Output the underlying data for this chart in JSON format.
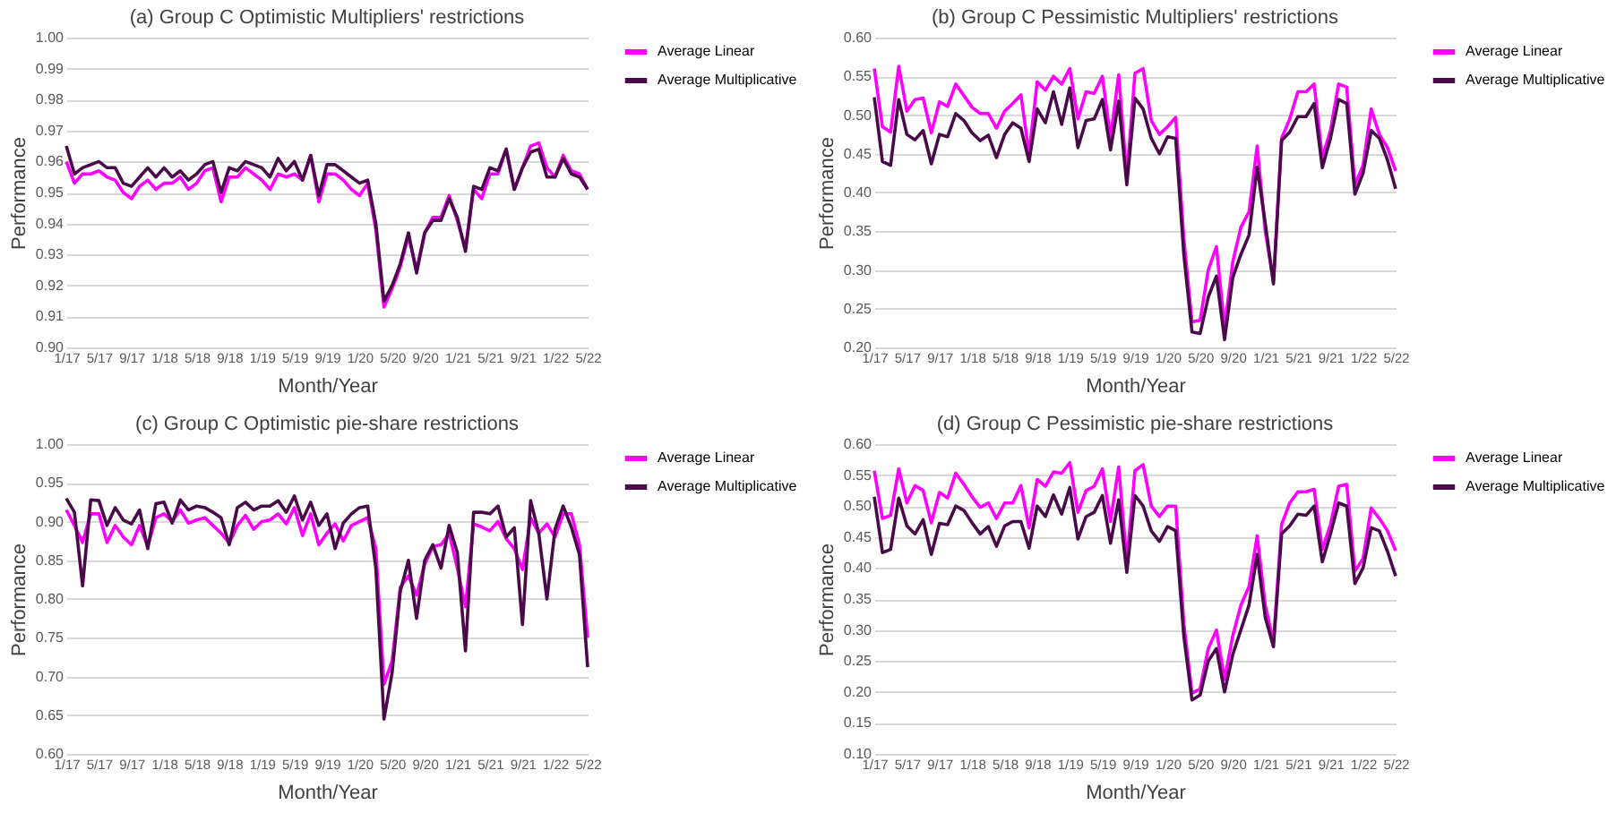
{
  "chart_data": [
    {
      "type": "line",
      "title": "(a) Group C Optimistic Multipliers' restrictions",
      "xlabel": "Month/Year",
      "ylabel": "Performance",
      "categories": [
        "1/17",
        null,
        null,
        null,
        "5/17",
        null,
        null,
        null,
        "9/17",
        null,
        null,
        null,
        "1/18",
        null,
        null,
        null,
        "5/18",
        null,
        null,
        null,
        "9/18",
        null,
        null,
        null,
        "1/19",
        null,
        null,
        null,
        "5/19",
        null,
        null,
        null,
        "9/19",
        null,
        null,
        null,
        "1/20",
        null,
        null,
        null,
        "5/20",
        null,
        null,
        null,
        "9/20",
        null,
        null,
        null,
        "1/21",
        null,
        null,
        null,
        "5/21",
        null,
        null,
        null,
        "9/21",
        null,
        null,
        null,
        "1/22",
        null,
        null,
        null,
        "5/22"
      ],
      "series": [
        {
          "name": "Average Linear",
          "color": "#ff00ff",
          "values": [
            0.96,
            0.953,
            0.956,
            0.956,
            0.957,
            0.955,
            0.954,
            0.95,
            0.948,
            0.952,
            0.954,
            0.951,
            0.953,
            0.953,
            0.955,
            0.951,
            0.953,
            0.957,
            0.958,
            0.947,
            0.955,
            0.955,
            0.958,
            0.956,
            0.954,
            0.951,
            0.956,
            0.955,
            0.956,
            0.954,
            0.962,
            0.947,
            0.956,
            0.956,
            0.954,
            0.951,
            0.949,
            0.953,
            0.938,
            0.913,
            0.919,
            0.926,
            0.936,
            0.925,
            0.937,
            0.942,
            0.942,
            0.949,
            0.941,
            0.932,
            0.951,
            0.948,
            0.956,
            0.956,
            0.964,
            0.951,
            0.958,
            0.965,
            0.966,
            0.958,
            0.955,
            0.962,
            0.957,
            0.956,
            0.951
          ]
        },
        {
          "name": "Average Multiplicative",
          "color": "#4a0a4a",
          "values": [
            0.965,
            0.956,
            0.958,
            0.959,
            0.96,
            0.958,
            0.958,
            0.953,
            0.952,
            0.955,
            0.958,
            0.955,
            0.958,
            0.955,
            0.957,
            0.954,
            0.956,
            0.959,
            0.96,
            0.95,
            0.958,
            0.957,
            0.96,
            0.959,
            0.958,
            0.955,
            0.961,
            0.957,
            0.96,
            0.954,
            0.962,
            0.949,
            0.959,
            0.959,
            0.957,
            0.955,
            0.953,
            0.954,
            0.94,
            0.915,
            0.92,
            0.927,
            0.937,
            0.924,
            0.937,
            0.941,
            0.941,
            0.948,
            0.942,
            0.931,
            0.952,
            0.951,
            0.958,
            0.957,
            0.964,
            0.951,
            0.958,
            0.963,
            0.964,
            0.955,
            0.955,
            0.961,
            0.956,
            0.955,
            0.951
          ]
        }
      ],
      "ylim": [
        0.9,
        1.0
      ],
      "yticks": [
        {
          "value": 0.9,
          "label": "0.90"
        },
        0.91,
        0.92,
        0.93,
        0.94,
        0.95,
        0.96,
        0.97,
        0.98,
        0.99,
        {
          "value": 1.0,
          "label": "1.00"
        }
      ],
      "grid": "y",
      "legend": "right"
    },
    {
      "type": "line",
      "title": "(b) Group C Pessimistic Multipliers' restrictions",
      "xlabel": "Month/Year",
      "ylabel": "Performance",
      "categories": [
        "1/17",
        null,
        null,
        null,
        "5/17",
        null,
        null,
        null,
        "9/17",
        null,
        null,
        null,
        "1/18",
        null,
        null,
        null,
        "5/18",
        null,
        null,
        null,
        "9/18",
        null,
        null,
        null,
        "1/19",
        null,
        null,
        null,
        "5/19",
        null,
        null,
        null,
        "9/19",
        null,
        null,
        null,
        "1/20",
        null,
        null,
        null,
        "5/20",
        null,
        null,
        null,
        "9/20",
        null,
        null,
        null,
        "1/21",
        null,
        null,
        null,
        "5/21",
        null,
        null,
        null,
        "9/21",
        null,
        null,
        null,
        "1/22",
        null,
        null,
        null,
        "5/22"
      ],
      "series": [
        {
          "name": "Average Linear",
          "color": "#ff00ff",
          "values": [
            0.56,
            0.485,
            0.478,
            0.563,
            0.505,
            0.52,
            0.522,
            0.477,
            0.517,
            0.511,
            0.54,
            0.525,
            0.51,
            0.502,
            0.502,
            0.483,
            0.505,
            0.515,
            0.526,
            0.45,
            0.543,
            0.532,
            0.55,
            0.54,
            0.56,
            0.495,
            0.53,
            0.528,
            0.55,
            0.47,
            0.552,
            0.42,
            0.554,
            0.56,
            0.493,
            0.475,
            0.485,
            0.497,
            0.34,
            0.233,
            0.235,
            0.3,
            0.33,
            0.225,
            0.31,
            0.355,
            0.375,
            0.46,
            0.35,
            0.285,
            0.47,
            0.495,
            0.53,
            0.53,
            0.54,
            0.445,
            0.48,
            0.54,
            0.536,
            0.41,
            0.435,
            0.508,
            0.475,
            0.458,
            0.428
          ]
        },
        {
          "name": "Average Multiplicative",
          "color": "#4a0a4a",
          "values": [
            0.523,
            0.44,
            0.435,
            0.52,
            0.475,
            0.468,
            0.48,
            0.437,
            0.475,
            0.472,
            0.502,
            0.493,
            0.477,
            0.467,
            0.474,
            0.445,
            0.475,
            0.49,
            0.483,
            0.44,
            0.508,
            0.49,
            0.53,
            0.488,
            0.535,
            0.458,
            0.493,
            0.495,
            0.52,
            0.455,
            0.518,
            0.41,
            0.522,
            0.508,
            0.47,
            0.45,
            0.472,
            0.47,
            0.32,
            0.22,
            0.218,
            0.265,
            0.292,
            0.21,
            0.29,
            0.32,
            0.345,
            0.433,
            0.36,
            0.282,
            0.467,
            0.478,
            0.498,
            0.498,
            0.515,
            0.432,
            0.47,
            0.52,
            0.515,
            0.398,
            0.425,
            0.48,
            0.47,
            0.442,
            0.405
          ]
        }
      ],
      "ylim": [
        0.2,
        0.6
      ],
      "yticks": [
        {
          "value": 0.2,
          "label": "0.20"
        },
        0.25,
        {
          "value": 0.3,
          "label": "0.30"
        },
        0.35,
        {
          "value": 0.4,
          "label": "0.40"
        },
        0.45,
        {
          "value": 0.5,
          "label": "0.50"
        },
        0.55,
        {
          "value": 0.6,
          "label": "0.60"
        }
      ],
      "grid": "y",
      "legend": "right"
    },
    {
      "type": "line",
      "title": "(c) Group C Optimistic pie-share restrictions",
      "xlabel": "Month/Year",
      "ylabel": "Performance",
      "categories": [
        "1/17",
        null,
        null,
        null,
        "5/17",
        null,
        null,
        null,
        "9/17",
        null,
        null,
        null,
        "1/18",
        null,
        null,
        null,
        "5/18",
        null,
        null,
        null,
        "9/18",
        null,
        null,
        null,
        "1/19",
        null,
        null,
        null,
        "5/19",
        null,
        null,
        null,
        "9/19",
        null,
        null,
        null,
        "1/20",
        null,
        null,
        null,
        "5/20",
        null,
        null,
        null,
        "9/20",
        null,
        null,
        null,
        "1/21",
        null,
        null,
        null,
        "5/21",
        null,
        null,
        null,
        "9/21",
        null,
        null,
        null,
        "1/22",
        null,
        null,
        null,
        "5/22"
      ],
      "series": [
        {
          "name": "Average Linear",
          "color": "#ff00ff",
          "values": [
            0.915,
            0.895,
            0.873,
            0.91,
            0.91,
            0.873,
            0.895,
            0.88,
            0.87,
            0.895,
            0.868,
            0.905,
            0.91,
            0.9,
            0.915,
            0.898,
            0.902,
            0.905,
            0.895,
            0.885,
            0.872,
            0.895,
            0.908,
            0.89,
            0.9,
            0.902,
            0.91,
            0.897,
            0.918,
            0.882,
            0.91,
            0.87,
            0.885,
            0.897,
            0.875,
            0.895,
            0.9,
            0.905,
            0.865,
            0.69,
            0.72,
            0.815,
            0.83,
            0.805,
            0.845,
            0.868,
            0.87,
            0.885,
            0.84,
            0.79,
            0.897,
            0.893,
            0.888,
            0.9,
            0.878,
            0.865,
            0.838,
            0.905,
            0.885,
            0.897,
            0.88,
            0.91,
            0.91,
            0.87,
            0.75
          ]
        },
        {
          "name": "Average Multiplicative",
          "color": "#4a0a4a",
          "values": [
            0.93,
            0.912,
            0.817,
            0.928,
            0.927,
            0.895,
            0.918,
            0.902,
            0.897,
            0.915,
            0.865,
            0.923,
            0.925,
            0.898,
            0.928,
            0.915,
            0.92,
            0.918,
            0.912,
            0.905,
            0.87,
            0.918,
            0.925,
            0.915,
            0.92,
            0.92,
            0.927,
            0.912,
            0.933,
            0.902,
            0.925,
            0.895,
            0.91,
            0.865,
            0.898,
            0.91,
            0.918,
            0.92,
            0.84,
            0.645,
            0.705,
            0.81,
            0.85,
            0.775,
            0.85,
            0.87,
            0.84,
            0.895,
            0.86,
            0.733,
            0.912,
            0.912,
            0.91,
            0.92,
            0.88,
            0.892,
            0.767,
            0.927,
            0.885,
            0.8,
            0.89,
            0.92,
            0.893,
            0.857,
            0.712
          ]
        }
      ],
      "ylim": [
        0.6,
        1.0
      ],
      "yticks": [
        {
          "value": 0.6,
          "label": "0.60"
        },
        0.65,
        {
          "value": 0.7,
          "label": "0.70"
        },
        0.75,
        {
          "value": 0.8,
          "label": "0.80"
        },
        0.85,
        {
          "value": 0.9,
          "label": "0.90"
        },
        0.95,
        {
          "value": 1.0,
          "label": "1.00"
        }
      ],
      "grid": "y",
      "legend": "right"
    },
    {
      "type": "line",
      "title": "(d) Group C Pessimistic pie-share restrictions",
      "xlabel": "Month/Year",
      "ylabel": "Performance",
      "categories": [
        "1/17",
        null,
        null,
        null,
        "5/17",
        null,
        null,
        null,
        "9/17",
        null,
        null,
        null,
        "1/18",
        null,
        null,
        null,
        "5/18",
        null,
        null,
        null,
        "9/18",
        null,
        null,
        null,
        "1/19",
        null,
        null,
        null,
        "5/19",
        null,
        null,
        null,
        "9/19",
        null,
        null,
        null,
        "1/20",
        null,
        null,
        null,
        "5/20",
        null,
        null,
        null,
        "9/20",
        null,
        null,
        null,
        "1/21",
        null,
        null,
        null,
        "5/21",
        null,
        null,
        null,
        "9/21",
        null,
        null,
        null,
        "1/22",
        null,
        null,
        null,
        "5/22"
      ],
      "series": [
        {
          "name": "Average Linear",
          "color": "#ff00ff",
          "values": [
            0.557,
            0.48,
            0.485,
            0.56,
            0.505,
            0.533,
            0.525,
            0.473,
            0.522,
            0.513,
            0.553,
            0.535,
            0.515,
            0.498,
            0.505,
            0.48,
            0.505,
            0.505,
            0.533,
            0.465,
            0.543,
            0.532,
            0.555,
            0.553,
            0.57,
            0.49,
            0.525,
            0.532,
            0.56,
            0.475,
            0.563,
            0.41,
            0.557,
            0.567,
            0.5,
            0.483,
            0.5,
            0.5,
            0.31,
            0.198,
            0.205,
            0.27,
            0.3,
            0.22,
            0.29,
            0.34,
            0.37,
            0.452,
            0.34,
            0.28,
            0.47,
            0.505,
            0.523,
            0.523,
            0.527,
            0.43,
            0.47,
            0.532,
            0.535,
            0.395,
            0.415,
            0.497,
            0.48,
            0.46,
            0.428
          ]
        },
        {
          "name": "Average Multiplicative",
          "color": "#4a0a4a",
          "values": [
            0.515,
            0.425,
            0.43,
            0.513,
            0.468,
            0.455,
            0.478,
            0.422,
            0.472,
            0.47,
            0.5,
            0.493,
            0.473,
            0.455,
            0.467,
            0.435,
            0.468,
            0.475,
            0.475,
            0.432,
            0.5,
            0.483,
            0.518,
            0.487,
            0.53,
            0.447,
            0.483,
            0.49,
            0.517,
            0.44,
            0.51,
            0.393,
            0.517,
            0.5,
            0.46,
            0.443,
            0.467,
            0.46,
            0.29,
            0.187,
            0.195,
            0.25,
            0.27,
            0.2,
            0.26,
            0.3,
            0.34,
            0.422,
            0.32,
            0.273,
            0.455,
            0.468,
            0.487,
            0.485,
            0.5,
            0.41,
            0.455,
            0.505,
            0.5,
            0.375,
            0.4,
            0.465,
            0.46,
            0.427,
            0.387
          ]
        }
      ],
      "ylim": [
        0.1,
        0.6
      ],
      "yticks": [
        {
          "value": 0.1,
          "label": "0.10"
        },
        0.15,
        {
          "value": 0.2,
          "label": "0.20"
        },
        0.25,
        {
          "value": 0.3,
          "label": "0.30"
        },
        0.35,
        {
          "value": 0.4,
          "label": "0.40"
        },
        0.45,
        {
          "value": 0.5,
          "label": "0.50"
        },
        0.55,
        {
          "value": 0.6,
          "label": "0.60"
        }
      ],
      "grid": "y",
      "legend": "right"
    }
  ]
}
